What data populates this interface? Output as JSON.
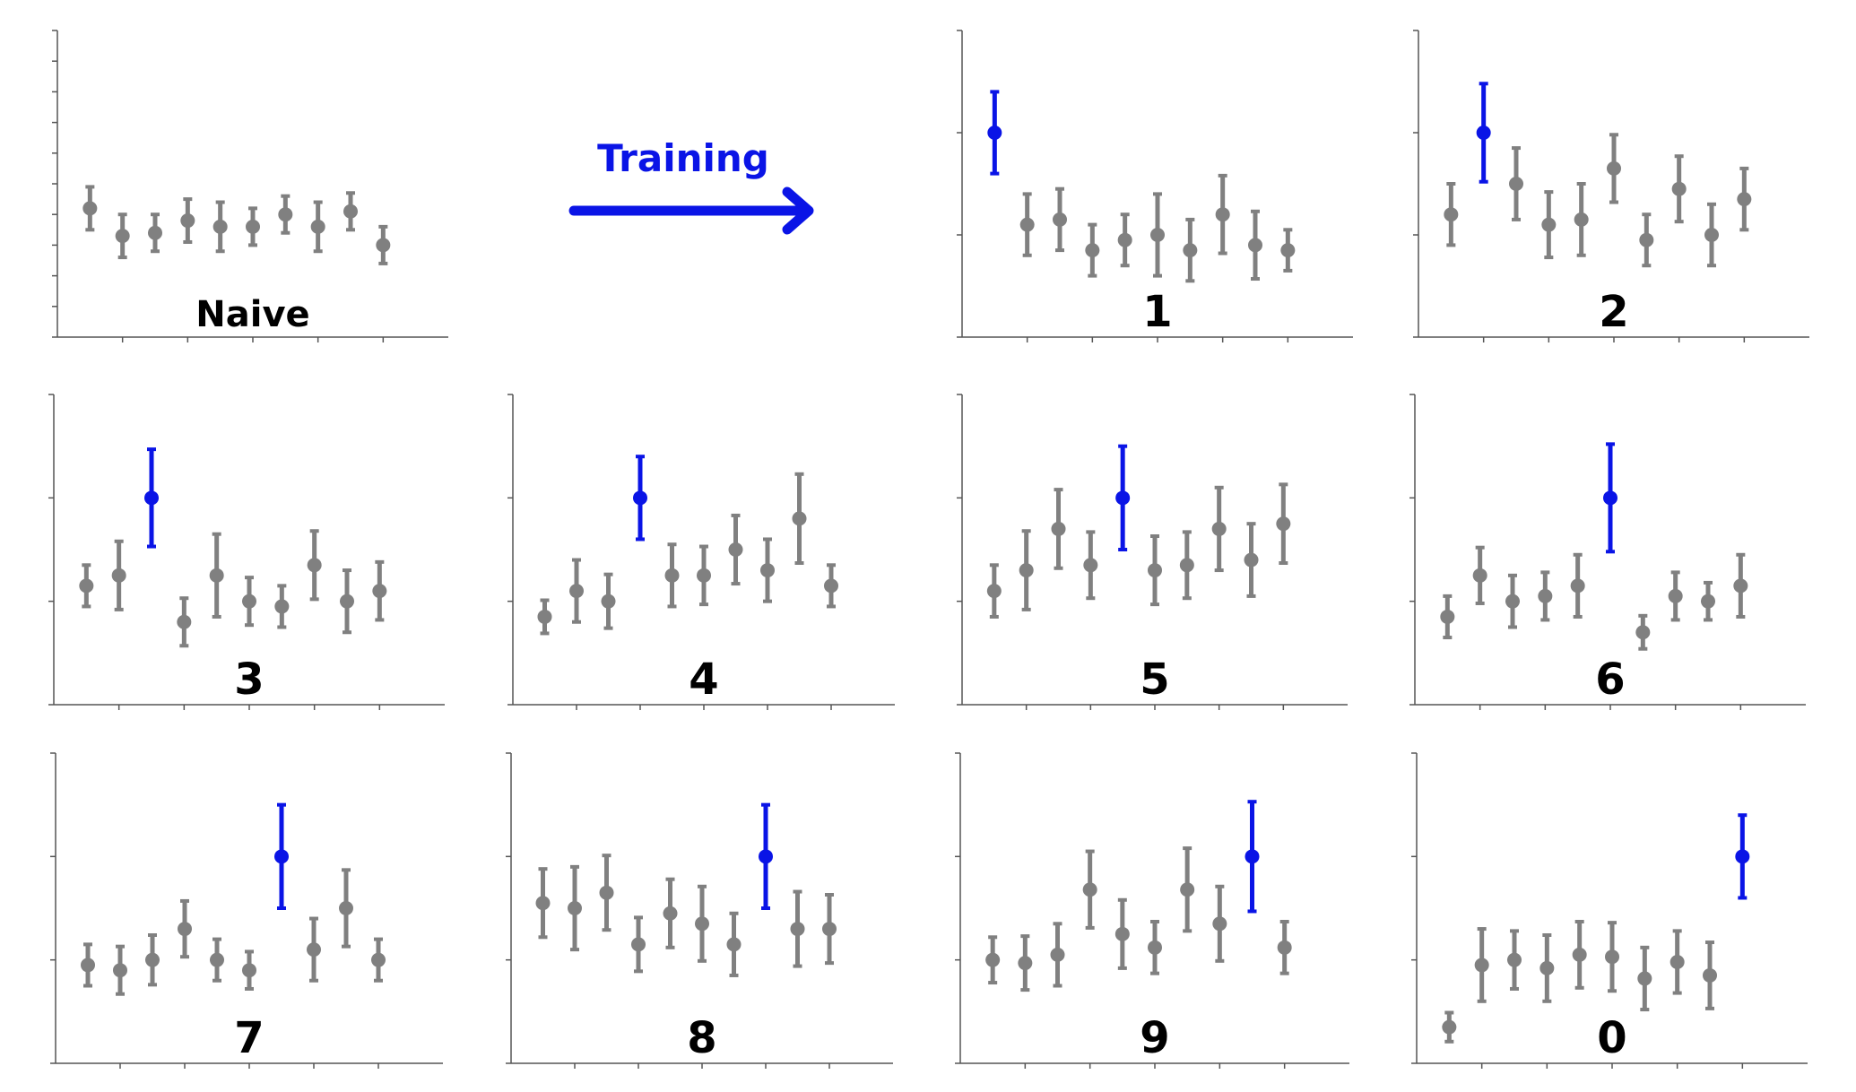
{
  "colors": {
    "highlight": "#0a14e6",
    "other": "#808080",
    "axis": "#555555"
  },
  "annotation": {
    "text": "Training",
    "arrow": "right-arrow"
  },
  "chart_data": [
    {
      "type": "errorbar",
      "label": "Naive",
      "highlight": null,
      "points": [
        [
          4.2,
          0.7
        ],
        [
          3.3,
          0.7
        ],
        [
          3.4,
          0.6
        ],
        [
          3.8,
          0.7
        ],
        [
          3.6,
          0.8
        ],
        [
          3.6,
          0.6
        ],
        [
          4.0,
          0.6
        ],
        [
          3.6,
          0.8
        ],
        [
          4.1,
          0.6
        ],
        [
          3.0,
          0.6
        ]
      ]
    },
    {
      "type": "errorbar",
      "label": "1",
      "highlight": 0,
      "points": [
        [
          2.0,
          0.4
        ],
        [
          1.1,
          0.3
        ],
        [
          1.15,
          0.3
        ],
        [
          0.85,
          0.25
        ],
        [
          0.95,
          0.25
        ],
        [
          1.0,
          0.4
        ],
        [
          0.85,
          0.3
        ],
        [
          1.2,
          0.38
        ],
        [
          0.9,
          0.33
        ],
        [
          0.85,
          0.2
        ]
      ]
    },
    {
      "type": "errorbar",
      "label": "2",
      "highlight": 1,
      "points": [
        [
          1.2,
          0.3
        ],
        [
          2.0,
          0.48
        ],
        [
          1.5,
          0.35
        ],
        [
          1.1,
          0.32
        ],
        [
          1.15,
          0.35
        ],
        [
          1.65,
          0.33
        ],
        [
          0.95,
          0.25
        ],
        [
          1.45,
          0.32
        ],
        [
          1.0,
          0.3
        ],
        [
          1.35,
          0.3
        ]
      ]
    },
    {
      "type": "errorbar",
      "label": "3",
      "highlight": 2,
      "points": [
        [
          1.15,
          0.2
        ],
        [
          1.25,
          0.33
        ],
        [
          2.0,
          0.47
        ],
        [
          0.8,
          0.23
        ],
        [
          1.25,
          0.4
        ],
        [
          1.0,
          0.23
        ],
        [
          0.95,
          0.2
        ],
        [
          1.35,
          0.33
        ],
        [
          1.0,
          0.3
        ],
        [
          1.1,
          0.28
        ]
      ]
    },
    {
      "type": "errorbar",
      "label": "4",
      "highlight": 3,
      "points": [
        [
          0.85,
          0.16
        ],
        [
          1.1,
          0.3
        ],
        [
          1.0,
          0.26
        ],
        [
          2.0,
          0.4
        ],
        [
          1.25,
          0.3
        ],
        [
          1.25,
          0.28
        ],
        [
          1.5,
          0.33
        ],
        [
          1.3,
          0.3
        ],
        [
          1.8,
          0.43
        ],
        [
          1.15,
          0.2
        ]
      ]
    },
    {
      "type": "errorbar",
      "label": "5",
      "highlight": 4,
      "points": [
        [
          1.1,
          0.25
        ],
        [
          1.3,
          0.38
        ],
        [
          1.7,
          0.38
        ],
        [
          1.35,
          0.32
        ],
        [
          2.0,
          0.5
        ],
        [
          1.3,
          0.33
        ],
        [
          1.35,
          0.32
        ],
        [
          1.7,
          0.4
        ],
        [
          1.4,
          0.35
        ],
        [
          1.75,
          0.38
        ]
      ]
    },
    {
      "type": "errorbar",
      "label": "6",
      "highlight": 5,
      "points": [
        [
          0.85,
          0.2
        ],
        [
          1.25,
          0.27
        ],
        [
          1.0,
          0.25
        ],
        [
          1.05,
          0.23
        ],
        [
          1.15,
          0.3
        ],
        [
          2.0,
          0.52
        ],
        [
          0.7,
          0.16
        ],
        [
          1.05,
          0.23
        ],
        [
          1.0,
          0.18
        ],
        [
          1.15,
          0.3
        ]
      ]
    },
    {
      "type": "errorbar",
      "label": "7",
      "highlight": 6,
      "points": [
        [
          0.95,
          0.2
        ],
        [
          0.9,
          0.23
        ],
        [
          1.0,
          0.24
        ],
        [
          1.3,
          0.27
        ],
        [
          1.0,
          0.2
        ],
        [
          0.9,
          0.18
        ],
        [
          2.0,
          0.5
        ],
        [
          1.1,
          0.3
        ],
        [
          1.5,
          0.37
        ],
        [
          1.0,
          0.2
        ]
      ]
    },
    {
      "type": "errorbar",
      "label": "8",
      "highlight": 7,
      "points": [
        [
          1.55,
          0.33
        ],
        [
          1.5,
          0.4
        ],
        [
          1.65,
          0.36
        ],
        [
          1.15,
          0.26
        ],
        [
          1.45,
          0.33
        ],
        [
          1.35,
          0.36
        ],
        [
          1.15,
          0.3
        ],
        [
          2.0,
          0.5
        ],
        [
          1.3,
          0.36
        ],
        [
          1.3,
          0.33
        ]
      ]
    },
    {
      "type": "errorbar",
      "label": "9",
      "highlight": 8,
      "points": [
        [
          1.0,
          0.22
        ],
        [
          0.97,
          0.26
        ],
        [
          1.05,
          0.3
        ],
        [
          1.68,
          0.37
        ],
        [
          1.25,
          0.33
        ],
        [
          1.12,
          0.25
        ],
        [
          1.68,
          0.4
        ],
        [
          1.35,
          0.36
        ],
        [
          2.0,
          0.53
        ],
        [
          1.12,
          0.25
        ]
      ]
    },
    {
      "type": "errorbar",
      "label": "0",
      "highlight": 9,
      "points": [
        [
          0.35,
          0.14
        ],
        [
          0.95,
          0.35
        ],
        [
          1.0,
          0.28
        ],
        [
          0.92,
          0.32
        ],
        [
          1.05,
          0.32
        ],
        [
          1.03,
          0.33
        ],
        [
          0.82,
          0.3
        ],
        [
          0.98,
          0.3
        ],
        [
          0.85,
          0.32
        ],
        [
          2.0,
          0.4
        ]
      ]
    }
  ]
}
